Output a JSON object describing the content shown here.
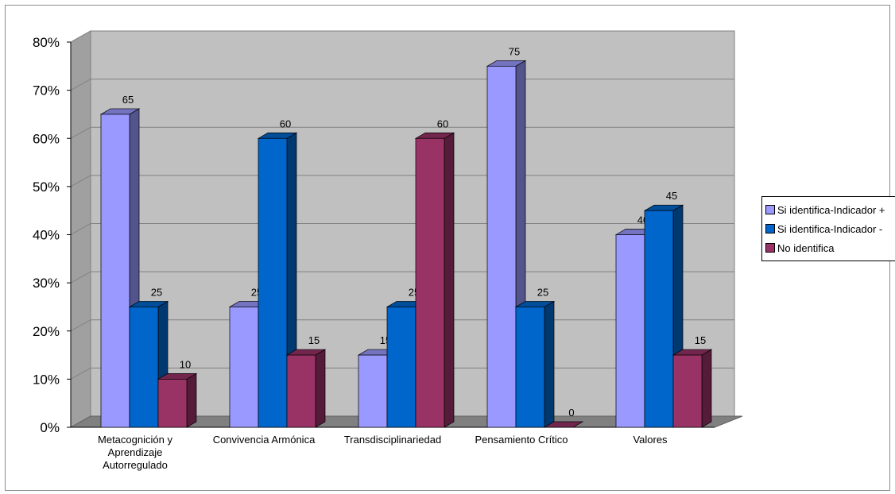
{
  "chart_data": {
    "type": "bar",
    "categories": [
      [
        "Metacognición y",
        "Aprendizaje",
        "Autorregulado"
      ],
      [
        "Convivencia Armónica"
      ],
      [
        "Transdisciplinariedad"
      ],
      [
        "Pensamiento Crítico"
      ],
      [
        "Valores"
      ]
    ],
    "series": [
      {
        "name": "Si identifica-Indicador +",
        "values": [
          65,
          25,
          15,
          75,
          40
        ],
        "color": "#9999ff"
      },
      {
        "name": "Si identifica-Indicador -",
        "values": [
          25,
          60,
          25,
          25,
          45
        ],
        "color": "#0066cc"
      },
      {
        "name": "No identifica",
        "values": [
          10,
          15,
          60,
          0,
          15
        ],
        "color": "#993366"
      }
    ],
    "y_ticks": [
      "0%",
      "10%",
      "20%",
      "30%",
      "40%",
      "50%",
      "60%",
      "70%",
      "80%"
    ],
    "ylim": [
      0,
      80
    ],
    "grid": true,
    "legend_position": "right",
    "wall_color": "#c0c0c0",
    "floor_color": "#808080"
  }
}
